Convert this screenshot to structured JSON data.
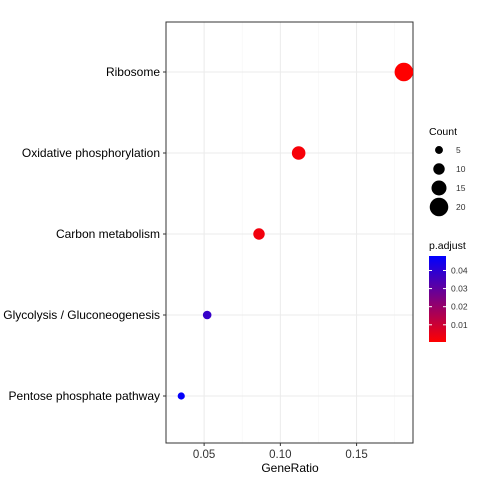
{
  "chart_data": {
    "type": "scatter",
    "title": "",
    "xlabel": "GeneRatio",
    "ylabel": "",
    "xlim": [
      0.025,
      0.187
    ],
    "xticks": [
      "0.05",
      "0.10",
      "0.15"
    ],
    "grid": true,
    "legend_placement": "right",
    "categories": [
      "Ribosome",
      "Oxidative phosphorylation",
      "Carbon metabolism",
      "Glycolysis / Gluconeogenesis",
      "Pentose phosphate pathway"
    ],
    "points": [
      {
        "category": "Ribosome",
        "gene_ratio": 0.181,
        "count": 20,
        "p_adjust": 0.0005
      },
      {
        "category": "Oxidative phosphorylation",
        "gene_ratio": 0.112,
        "count": 13,
        "p_adjust": 0.002
      },
      {
        "category": "Carbon metabolism",
        "gene_ratio": 0.086,
        "count": 10,
        "p_adjust": 0.003
      },
      {
        "category": "Glycolysis / Gluconeogenesis",
        "gene_ratio": 0.052,
        "count": 6,
        "p_adjust": 0.038
      },
      {
        "category": "Pentose phosphate pathway",
        "gene_ratio": 0.035,
        "count": 4,
        "p_adjust": 0.047
      }
    ],
    "size_legend": {
      "title": "Count",
      "values": [
        5,
        10,
        15,
        20
      ],
      "labels": [
        "5",
        "10",
        "15",
        "20"
      ]
    },
    "color_legend": {
      "title": "p.adjust",
      "low_color": "#ff0000",
      "high_color": "#0000ff",
      "range": [
        0.0005,
        0.048
      ],
      "ticks": [
        0.01,
        0.02,
        0.03,
        0.04
      ],
      "tick_labels": [
        "0.01",
        "0.02",
        "0.03",
        "0.04"
      ]
    }
  }
}
